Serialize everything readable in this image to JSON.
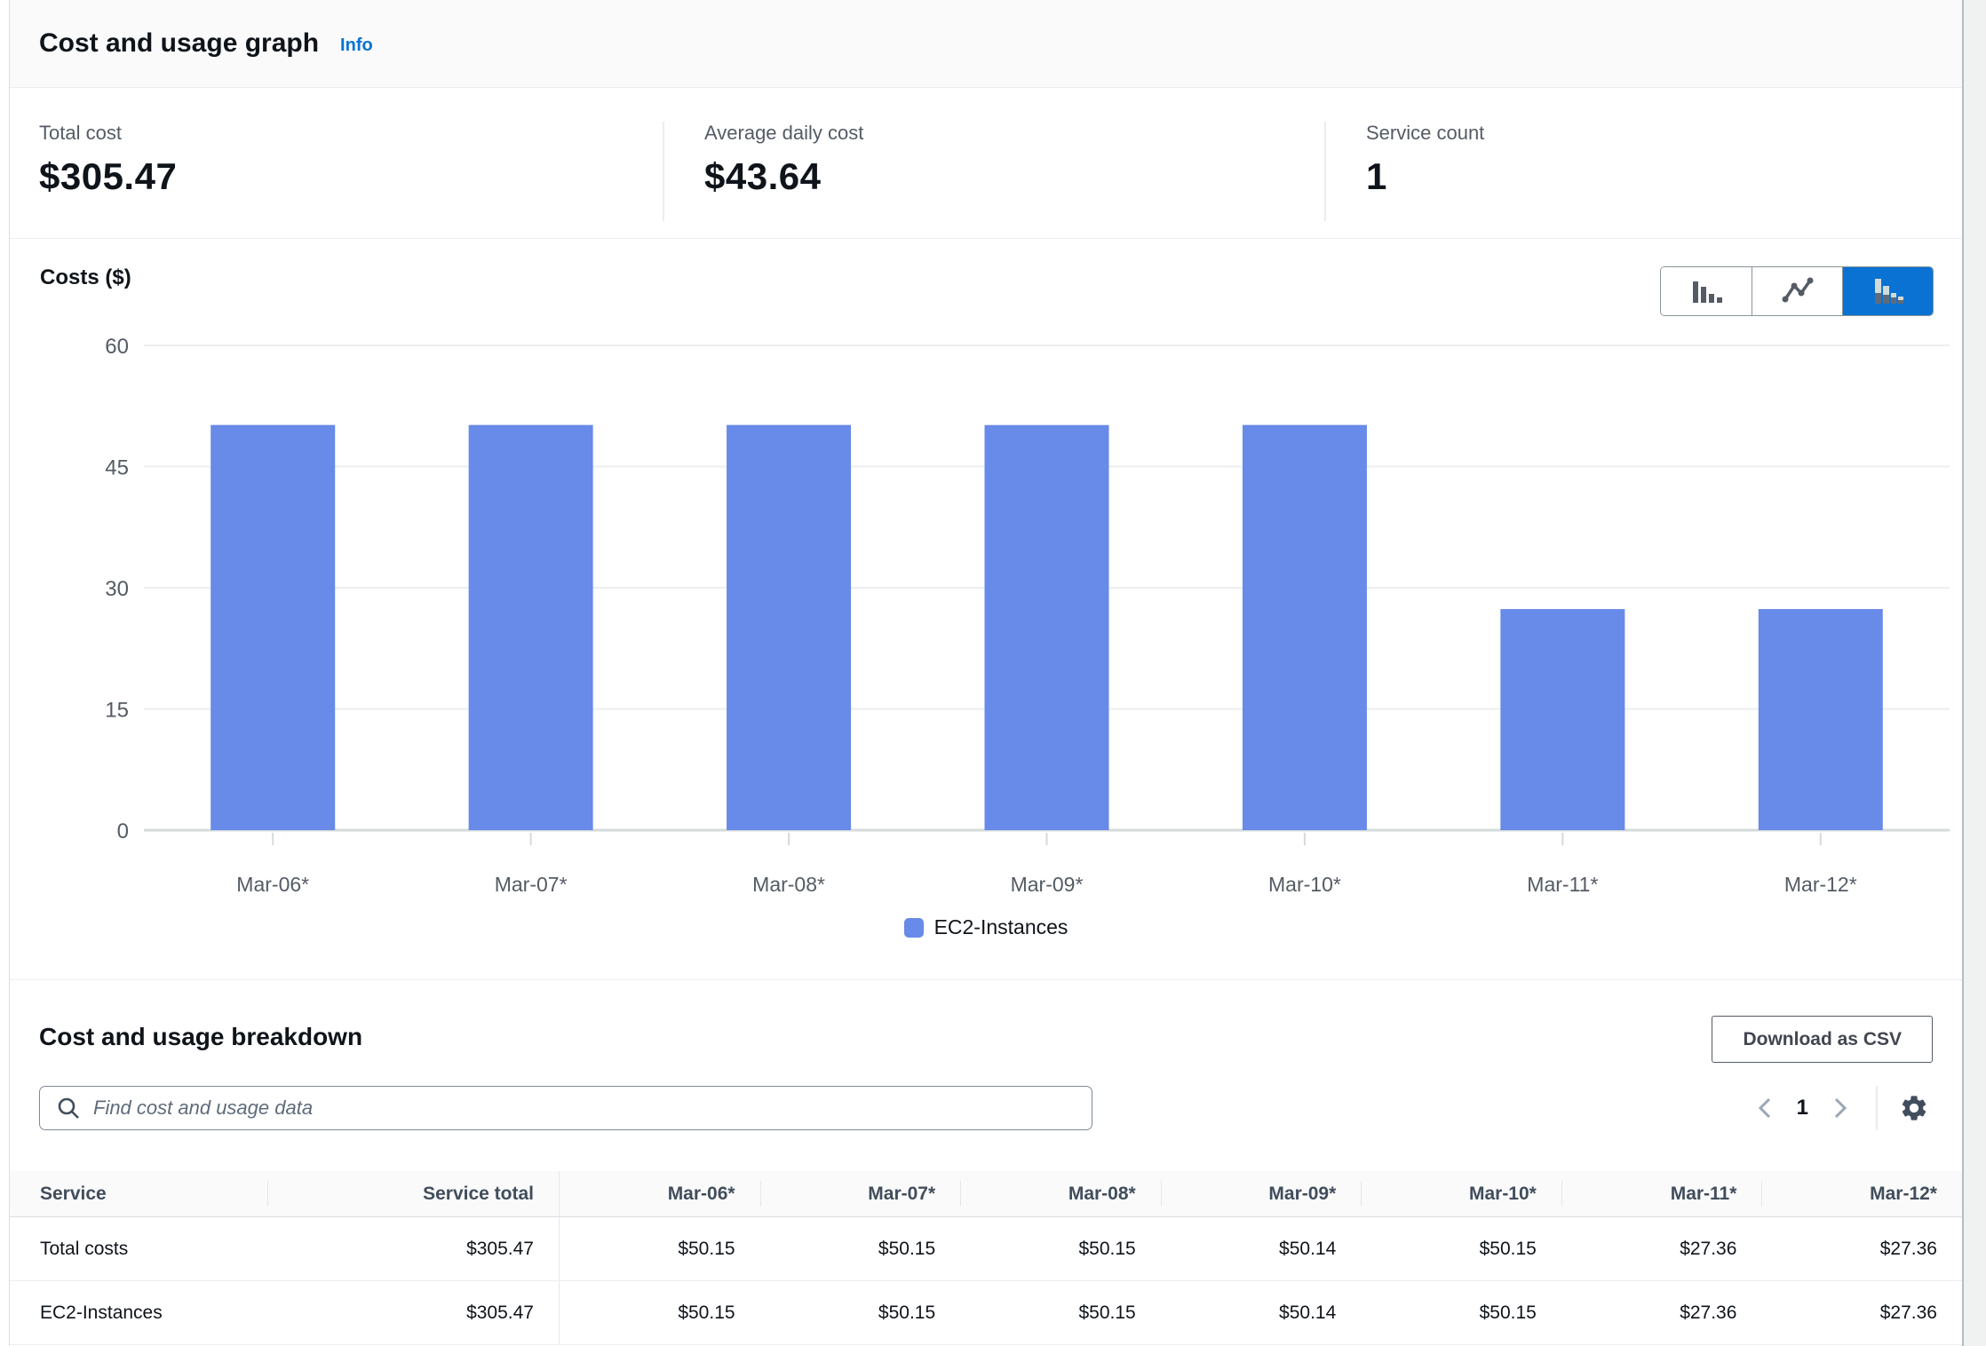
{
  "header": {
    "title": "Cost and usage graph",
    "info_label": "Info"
  },
  "stats": [
    {
      "label": "Total cost",
      "value": "$305.47"
    },
    {
      "label": "Average daily cost",
      "value": "$43.64"
    },
    {
      "label": "Service count",
      "value": "1"
    }
  ],
  "chart_toggle": {
    "options": [
      "bar-chart",
      "line-chart",
      "stacked-bar-chart"
    ],
    "selected": "stacked-bar-chart"
  },
  "chart_data": {
    "type": "bar",
    "title": "Costs ($)",
    "categories": [
      "Mar-06*",
      "Mar-07*",
      "Mar-08*",
      "Mar-09*",
      "Mar-10*",
      "Mar-11*",
      "Mar-12*"
    ],
    "series": [
      {
        "name": "EC2-Instances",
        "color": "#688AE8",
        "values": [
          50.15,
          50.15,
          50.15,
          50.14,
          50.15,
          27.36,
          27.36
        ]
      }
    ],
    "xlabel": "",
    "ylabel": "Costs ($)",
    "ylim": [
      0,
      60
    ],
    "yticks": [
      0,
      15,
      30,
      45,
      60
    ],
    "grid": true,
    "legend_position": "bottom"
  },
  "breakdown": {
    "title": "Cost and usage breakdown",
    "download_label": "Download as CSV",
    "search_placeholder": "Find cost and usage data",
    "search_value": "",
    "pagination": {
      "current_page": "1"
    }
  },
  "table": {
    "columns": [
      "Service",
      "Service total",
      "Mar-06*",
      "Mar-07*",
      "Mar-08*",
      "Mar-09*",
      "Mar-10*",
      "Mar-11*",
      "Mar-12*"
    ],
    "rows": [
      {
        "cells": [
          "Total costs",
          "$305.47",
          "$50.15",
          "$50.15",
          "$50.15",
          "$50.14",
          "$50.15",
          "$27.36",
          "$27.36"
        ]
      },
      {
        "cells": [
          "EC2-Instances",
          "$305.47",
          "$50.15",
          "$50.15",
          "$50.15",
          "$50.14",
          "$50.15",
          "$27.36",
          "$27.36"
        ]
      }
    ]
  },
  "colors": {
    "accent": "#0972D3",
    "bar": "#688AE8",
    "page_background": "#F0F2F2",
    "toggle_selected_bg": "#0972D3"
  }
}
